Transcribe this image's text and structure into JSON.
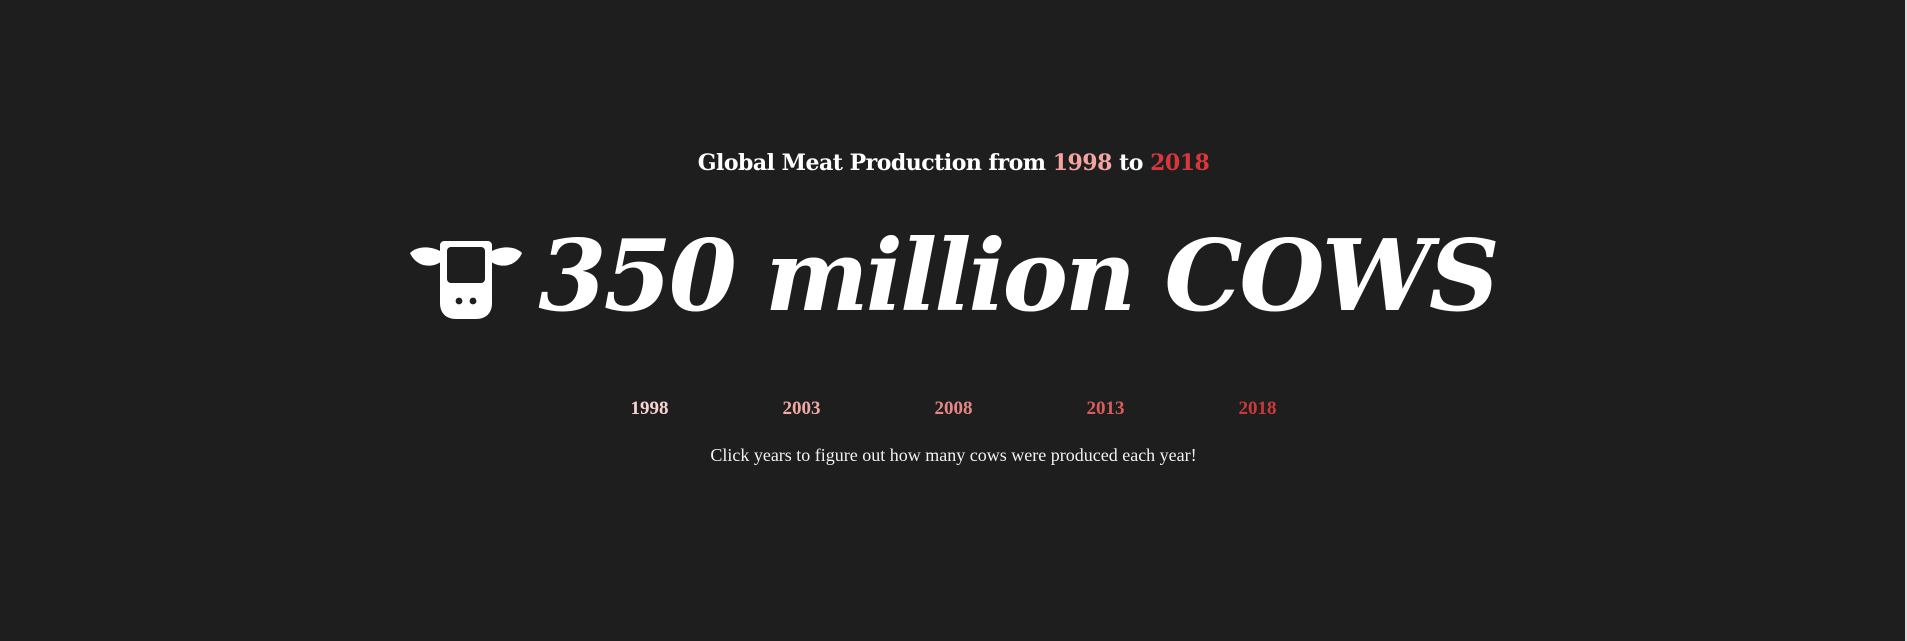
{
  "header": {
    "prefix": "Global Meat Production from ",
    "start_year": "1998",
    "middle": " to ",
    "end_year": "2018"
  },
  "headline": {
    "icon": "cow-icon",
    "text": "350 million COWS"
  },
  "years": [
    {
      "label": "1998",
      "color": "#f8d3d3"
    },
    {
      "label": "2003",
      "color": "#f0a9a4"
    },
    {
      "label": "2008",
      "color": "#e58783"
    },
    {
      "label": "2013",
      "color": "#d95d5c"
    },
    {
      "label": "2018",
      "color": "#c93a3a"
    }
  ],
  "instruction": "Click years to figure out how many cows were produced each year!"
}
